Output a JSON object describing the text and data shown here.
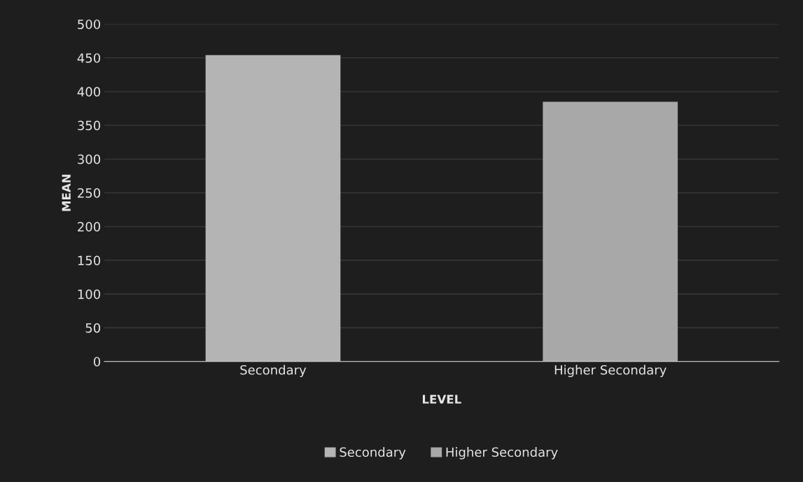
{
  "chart_data": {
    "type": "bar",
    "xlabel": "LEVEL",
    "ylabel": "MEAN",
    "categories": [
      "Secondary",
      "Higher Secondary"
    ],
    "series": [
      {
        "name": "Secondary",
        "color": "#b4b4b4",
        "values": [
          454,
          null
        ]
      },
      {
        "name": "Higher Secondary",
        "color": "#a8a8a8",
        "values": [
          null,
          385
        ]
      }
    ],
    "ylim": [
      0,
      500
    ],
    "yticks": [
      0,
      50,
      100,
      150,
      200,
      250,
      300,
      350,
      400,
      450,
      500
    ],
    "grid": "y",
    "legend": "bottom"
  }
}
